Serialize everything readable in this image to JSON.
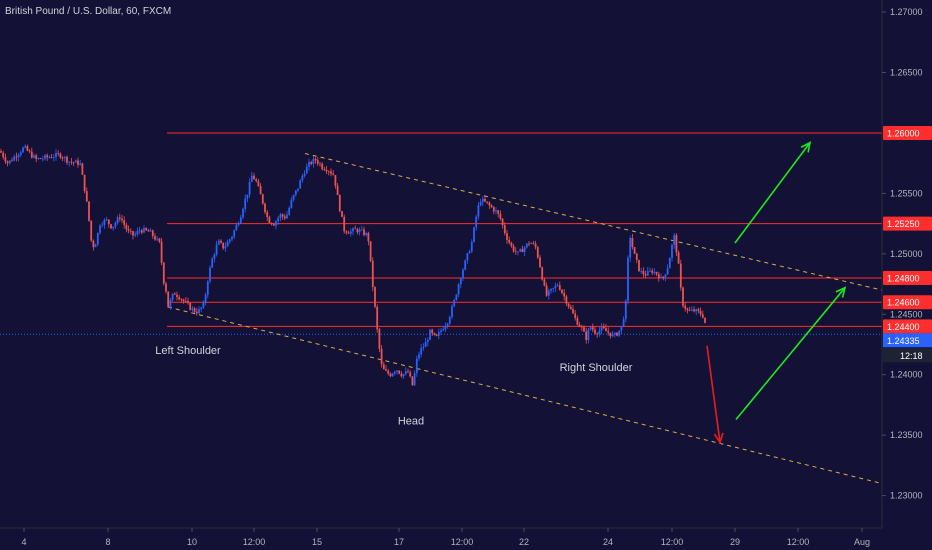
{
  "chart_data": {
    "type": "candlestick",
    "title": "British Pound / U.S. Dollar, 60, FXCM",
    "colors": {
      "background": "#131135",
      "up": "#2962ff",
      "down": "#ef5350",
      "level": "#ff2d2d",
      "trend": "#d8b04a",
      "arrow_up": "#1ee81e",
      "arrow_down": "#e81e1e",
      "current": "#2962ff",
      "axis_text": "#b2b5be"
    },
    "x_ticks": [
      {
        "label": "4",
        "t": 24
      },
      {
        "label": "8",
        "t": 108
      },
      {
        "label": "10",
        "t": 192
      },
      {
        "label": "12:00",
        "t": 254
      },
      {
        "label": "15",
        "t": 317
      },
      {
        "label": "17",
        "t": 399
      },
      {
        "label": "12:00",
        "t": 462
      },
      {
        "label": "22",
        "t": 524
      },
      {
        "label": "24",
        "t": 608
      },
      {
        "label": "12:00",
        "t": 672
      },
      {
        "label": "29",
        "t": 735
      },
      {
        "label": "12:00",
        "t": 798
      },
      {
        "label": "Aug",
        "t": 862
      }
    ],
    "y_range": [
      1.2255,
      1.271
    ],
    "y_ticks": [
      "1.27000",
      "1.26500",
      "1.25500",
      "1.25000",
      "1.24500",
      "1.24000",
      "1.23500",
      "1.23000"
    ],
    "levels": [
      {
        "label": "1.26000",
        "value": 1.26
      },
      {
        "label": "1.25250",
        "value": 1.2525
      },
      {
        "label": "1.24800",
        "value": 1.248
      },
      {
        "label": "1.24600",
        "value": 1.246
      },
      {
        "label": "1.24400",
        "value": 1.244
      }
    ],
    "current_price": {
      "label": "1.24335",
      "value": 1.24335
    },
    "countdown": "12:18",
    "trendlines": [
      {
        "from": {
          "t": 305,
          "v": 1.2583
        },
        "to": {
          "t": 882,
          "v": 1.247
        }
      },
      {
        "from": {
          "t": 168,
          "v": 1.2456
        },
        "to": {
          "t": 882,
          "v": 1.231
        }
      }
    ],
    "annotations": [
      {
        "text": "Left Shoulder",
        "t": 188,
        "v": 1.2417
      },
      {
        "text": "Head",
        "t": 411,
        "v": 1.2359
      },
      {
        "text": "Right Shoulder",
        "t": 596,
        "v": 1.2403
      }
    ],
    "arrows": [
      {
        "kind": "up",
        "from": {
          "t": 735,
          "v": 1.2509
        },
        "to": {
          "t": 810,
          "v": 1.2592
        }
      },
      {
        "kind": "up",
        "from": {
          "t": 736,
          "v": 1.2363
        },
        "to": {
          "t": 845,
          "v": 1.2472
        }
      },
      {
        "kind": "down",
        "from": {
          "t": 707,
          "v": 1.2424
        },
        "to": {
          "t": 720,
          "v": 1.2344
        }
      }
    ],
    "path": [
      [
        0,
        1.2585
      ],
      [
        8,
        1.2575
      ],
      [
        14,
        1.258
      ],
      [
        24,
        1.2588
      ],
      [
        36,
        1.2578
      ],
      [
        48,
        1.258
      ],
      [
        60,
        1.2582
      ],
      [
        70,
        1.2576
      ],
      [
        80,
        1.2575
      ],
      [
        85,
        1.2552
      ],
      [
        88,
        1.2535
      ],
      [
        92,
        1.2505
      ],
      [
        96,
        1.251
      ],
      [
        100,
        1.2525
      ],
      [
        106,
        1.2528
      ],
      [
        112,
        1.2522
      ],
      [
        120,
        1.2531
      ],
      [
        128,
        1.2518
      ],
      [
        134,
        1.2515
      ],
      [
        140,
        1.252
      ],
      [
        150,
        1.2518
      ],
      [
        160,
        1.2508
      ],
      [
        163,
        1.248
      ],
      [
        166,
        1.247
      ],
      [
        168,
        1.2456
      ],
      [
        174,
        1.2468
      ],
      [
        180,
        1.2464
      ],
      [
        186,
        1.2459
      ],
      [
        192,
        1.2454
      ],
      [
        198,
        1.2452
      ],
      [
        204,
        1.2458
      ],
      [
        208,
        1.248
      ],
      [
        212,
        1.2495
      ],
      [
        218,
        1.251
      ],
      [
        224,
        1.2505
      ],
      [
        232,
        1.2515
      ],
      [
        240,
        1.253
      ],
      [
        244,
        1.2542
      ],
      [
        248,
        1.2552
      ],
      [
        252,
        1.2565
      ],
      [
        256,
        1.256
      ],
      [
        262,
        1.2545
      ],
      [
        268,
        1.2528
      ],
      [
        274,
        1.2525
      ],
      [
        280,
        1.2532
      ],
      [
        286,
        1.253
      ],
      [
        292,
        1.2545
      ],
      [
        298,
        1.2555
      ],
      [
        304,
        1.2568
      ],
      [
        310,
        1.2575
      ],
      [
        316,
        1.2578
      ],
      [
        322,
        1.2572
      ],
      [
        328,
        1.257
      ],
      [
        334,
        1.2565
      ],
      [
        338,
        1.2545
      ],
      [
        344,
        1.252
      ],
      [
        350,
        1.2518
      ],
      [
        356,
        1.252
      ],
      [
        362,
        1.2518
      ],
      [
        368,
        1.2515
      ],
      [
        372,
        1.248
      ],
      [
        375,
        1.2455
      ],
      [
        378,
        1.243
      ],
      [
        382,
        1.2405
      ],
      [
        386,
        1.2402
      ],
      [
        390,
        1.24
      ],
      [
        396,
        1.2405
      ],
      [
        402,
        1.24
      ],
      [
        408,
        1.2402
      ],
      [
        413,
        1.239
      ],
      [
        416,
        1.241
      ],
      [
        420,
        1.242
      ],
      [
        425,
        1.2425
      ],
      [
        430,
        1.2435
      ],
      [
        436,
        1.243
      ],
      [
        442,
        1.2438
      ],
      [
        448,
        1.2445
      ],
      [
        454,
        1.246
      ],
      [
        460,
        1.248
      ],
      [
        466,
        1.2495
      ],
      [
        472,
        1.251
      ],
      [
        476,
        1.253
      ],
      [
        480,
        1.2545
      ],
      [
        486,
        1.2542
      ],
      [
        492,
        1.2538
      ],
      [
        496,
        1.2535
      ],
      [
        500,
        1.253
      ],
      [
        506,
        1.2515
      ],
      [
        512,
        1.2505
      ],
      [
        518,
        1.25
      ],
      [
        524,
        1.2505
      ],
      [
        530,
        1.251
      ],
      [
        536,
        1.2505
      ],
      [
        540,
        1.249
      ],
      [
        546,
        1.2465
      ],
      [
        552,
        1.247
      ],
      [
        558,
        1.2475
      ],
      [
        564,
        1.2465
      ],
      [
        570,
        1.2455
      ],
      [
        576,
        1.2445
      ],
      [
        582,
        1.2438
      ],
      [
        586,
        1.243
      ],
      [
        590,
        1.244
      ],
      [
        596,
        1.2435
      ],
      [
        602,
        1.2438
      ],
      [
        608,
        1.2435
      ],
      [
        614,
        1.2432
      ],
      [
        618,
        1.2435
      ],
      [
        622,
        1.244
      ],
      [
        626,
        1.246
      ],
      [
        628,
        1.2495
      ],
      [
        630,
        1.2515
      ],
      [
        634,
        1.25
      ],
      [
        640,
        1.2485
      ],
      [
        646,
        1.2483
      ],
      [
        652,
        1.2486
      ],
      [
        658,
        1.2483
      ],
      [
        662,
        1.2478
      ],
      [
        668,
        1.249
      ],
      [
        674,
        1.2515
      ],
      [
        678,
        1.2495
      ],
      [
        682,
        1.246
      ],
      [
        688,
        1.2452
      ],
      [
        694,
        1.2453
      ],
      [
        700,
        1.2451
      ],
      [
        704,
        1.2448
      ],
      [
        707,
        1.2433
      ]
    ]
  }
}
